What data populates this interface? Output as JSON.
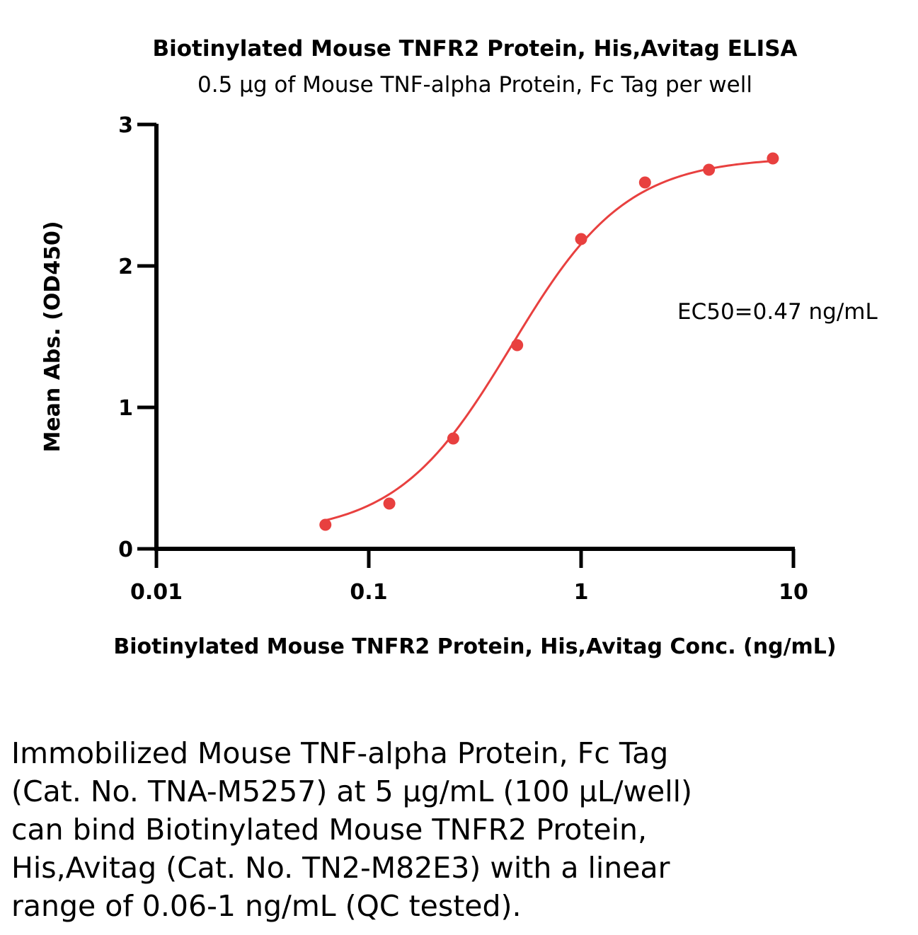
{
  "chart_data": {
    "type": "scatter",
    "title": "Biotinylated Mouse TNFR2 Protein, His,Avitag ELISA",
    "subtitle": "0.5 μg of Mouse TNF-alpha Protein, Fc Tag per well",
    "xlabel": "Biotinylated Mouse TNFR2 Protein, His,Avitag Conc. (ng/mL)",
    "ylabel": "Mean Abs. (OD450)",
    "x_scale": "log",
    "xlim": [
      0.01,
      10
    ],
    "ylim": [
      0,
      3
    ],
    "x_ticks": [
      "0.01",
      "0.1",
      "1",
      "10"
    ],
    "y_ticks": [
      "0",
      "1",
      "2",
      "3"
    ],
    "series": [
      {
        "x": [
          0.0625,
          0.125,
          0.25,
          0.5,
          1,
          2,
          4,
          8
        ],
        "y": [
          0.17,
          0.32,
          0.78,
          1.44,
          2.19,
          2.59,
          2.68,
          2.76
        ],
        "color": "#e8403f",
        "fit": "4PL sigmoid curve"
      }
    ],
    "fit_curve": {
      "bottom": 0.1,
      "top": 2.77,
      "ec50": 0.47,
      "hill": 1.6
    },
    "annotation": "EC50=0.47 ng/mL",
    "grid": false,
    "legend": "none"
  },
  "caption_lines": [
    "Immobilized Mouse TNF-alpha Protein, Fc Tag",
    "(Cat. No. TNA-M5257) at 5 μg/mL (100 μL/well)",
    "can bind Biotinylated Mouse TNFR2 Protein,",
    "His,Avitag (Cat. No. TN2-M82E3) with a linear",
    "range of 0.06-1 ng/mL (QC tested)."
  ]
}
